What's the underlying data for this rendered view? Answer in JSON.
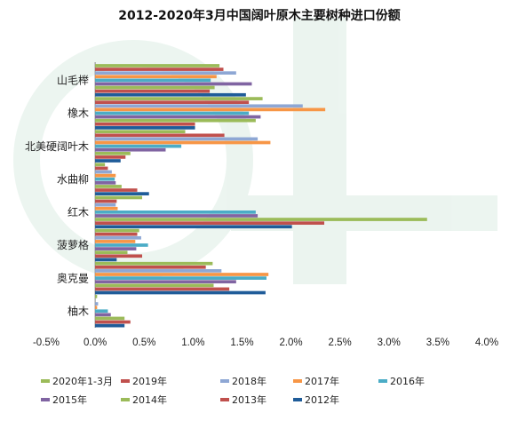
{
  "chart_data": {
    "type": "bar",
    "orientation": "horizontal",
    "title": "2012-2020年3月中国阔叶原木主要树种进口份额",
    "categories": [
      "山毛榉",
      "橡木",
      "北美硬阔叶木",
      "水曲柳",
      "红木",
      "菠萝格",
      "奥克曼",
      "柚木"
    ],
    "xlim": [
      -0.5,
      4.0
    ],
    "xticks": [
      "-0.5%",
      "0.0%",
      "0.5%",
      "1.0%",
      "1.5%",
      "2.0%",
      "2.5%",
      "3.0%",
      "3.5%",
      "4.0%"
    ],
    "grid": false,
    "legend_position": "bottom",
    "series": [
      {
        "name": "2020年1-3月",
        "color": "#9BBB59",
        "values": [
          1.27,
          1.71,
          0.92,
          0.1,
          0.48,
          0.45,
          1.2,
          0.02
        ]
      },
      {
        "name": "2019年",
        "color": "#C0504D",
        "values": [
          1.31,
          1.57,
          1.32,
          0.13,
          0.22,
          0.43,
          1.13,
          0.0
        ]
      },
      {
        "name": "2018年",
        "color": "#8EA7D4",
        "values": [
          1.44,
          2.12,
          1.66,
          0.17,
          0.21,
          0.47,
          1.29,
          0.03
        ]
      },
      {
        "name": "2017年",
        "color": "#F79646",
        "values": [
          1.24,
          2.35,
          1.79,
          0.21,
          0.23,
          0.41,
          1.77,
          0.02
        ]
      },
      {
        "name": "2016年",
        "color": "#4BACC6",
        "values": [
          1.18,
          1.57,
          0.88,
          0.2,
          1.64,
          0.54,
          1.75,
          0.13
        ]
      },
      {
        "name": "2015年",
        "color": "#8064A2",
        "values": [
          1.6,
          1.69,
          0.72,
          0.21,
          1.66,
          0.42,
          1.44,
          0.16
        ]
      },
      {
        "name": "2014年",
        "color": "#9BBB59",
        "values": [
          1.22,
          1.64,
          0.36,
          0.27,
          3.39,
          0.33,
          1.21,
          0.3
        ]
      },
      {
        "name": "2013年",
        "color": "#C0504D",
        "values": [
          1.17,
          1.02,
          0.31,
          0.43,
          2.34,
          0.48,
          1.37,
          0.36
        ]
      },
      {
        "name": "2012年",
        "color": "#1F5C99",
        "values": [
          1.54,
          1.02,
          0.26,
          0.55,
          2.01,
          0.22,
          1.74,
          0.3
        ]
      }
    ]
  }
}
